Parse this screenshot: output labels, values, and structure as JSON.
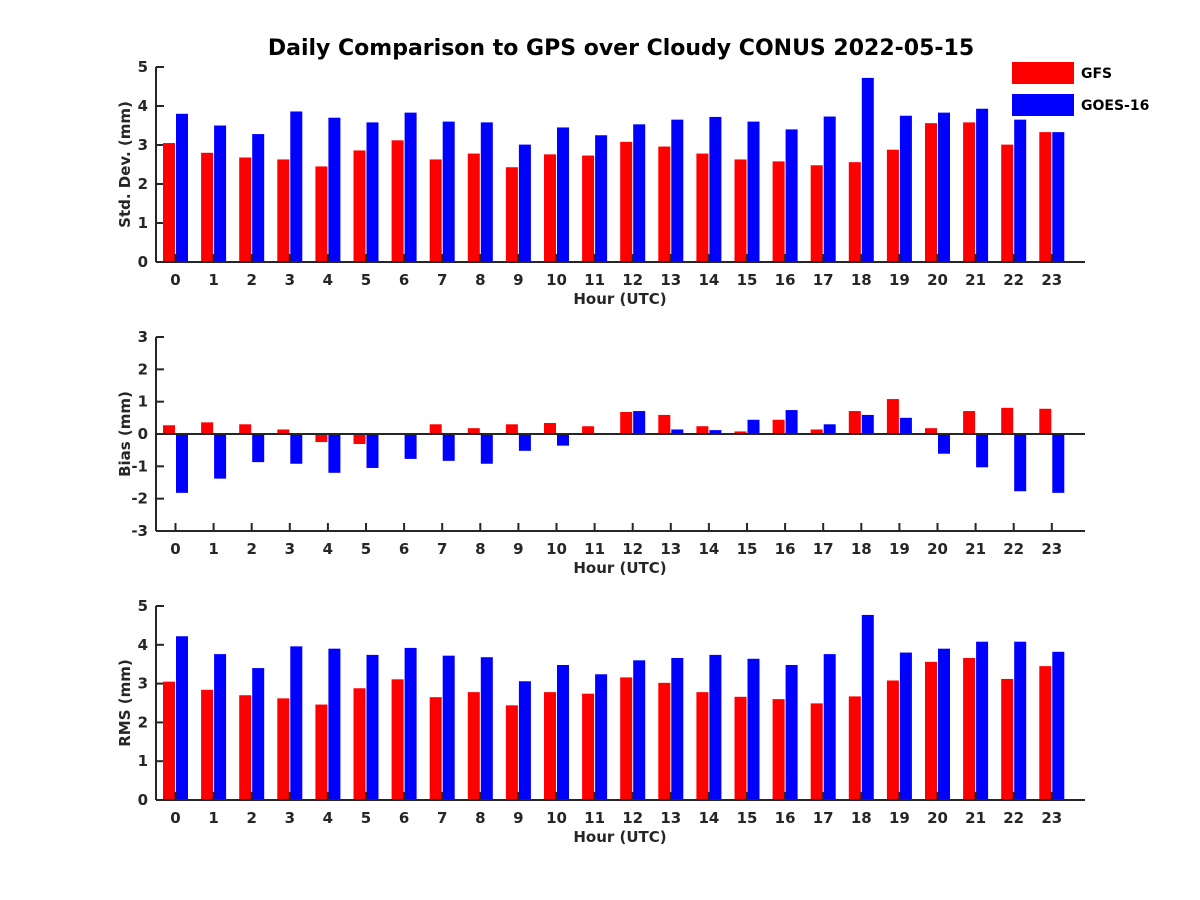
{
  "title": "Daily Comparison to GPS over Cloudy CONUS 2022-05-15",
  "colors": {
    "GFS": "#ff0000",
    "GOES-16": "#0000ff",
    "axis": "#262626"
  },
  "legend": {
    "placement": "top-right",
    "entries": [
      "GFS",
      "GOES-16"
    ]
  },
  "chart_data": [
    {
      "type": "bar",
      "ylabel": "Std. Dev. (mm)",
      "xlabel": "Hour (UTC)",
      "ylim": [
        0,
        5
      ],
      "yticks": [
        0,
        1,
        2,
        3,
        4,
        5
      ],
      "categories": [
        "0",
        "1",
        "2",
        "3",
        "4",
        "5",
        "6",
        "7",
        "8",
        "9",
        "10",
        "11",
        "12",
        "13",
        "14",
        "15",
        "16",
        "17",
        "18",
        "19",
        "20",
        "21",
        "22",
        "23"
      ],
      "series": [
        {
          "name": "GFS",
          "values": [
            3.05,
            2.8,
            2.68,
            2.63,
            2.45,
            2.86,
            3.12,
            2.63,
            2.78,
            2.43,
            2.76,
            2.73,
            3.08,
            2.96,
            2.78,
            2.63,
            2.58,
            2.48,
            2.56,
            2.88,
            3.56,
            3.58,
            3.01,
            3.33
          ]
        },
        {
          "name": "GOES-16",
          "values": [
            3.8,
            3.5,
            3.28,
            3.86,
            3.7,
            3.58,
            3.83,
            3.6,
            3.58,
            3.01,
            3.45,
            3.25,
            3.53,
            3.65,
            3.72,
            3.6,
            3.4,
            3.73,
            4.72,
            3.75,
            3.83,
            3.93,
            3.65,
            3.33
          ]
        }
      ]
    },
    {
      "type": "bar",
      "ylabel": "Bias (mm)",
      "xlabel": "Hour (UTC)",
      "ylim": [
        -3,
        3
      ],
      "yticks": [
        -3,
        -2,
        -1,
        0,
        1,
        2,
        3
      ],
      "categories": [
        "0",
        "1",
        "2",
        "3",
        "4",
        "5",
        "6",
        "7",
        "8",
        "9",
        "10",
        "11",
        "12",
        "13",
        "14",
        "15",
        "16",
        "17",
        "18",
        "19",
        "20",
        "21",
        "22",
        "23"
      ],
      "series": [
        {
          "name": "GFS",
          "values": [
            0.27,
            0.36,
            0.3,
            0.14,
            -0.25,
            -0.31,
            0.02,
            0.3,
            0.18,
            0.3,
            0.34,
            0.24,
            0.68,
            0.59,
            0.24,
            0.08,
            0.44,
            0.14,
            0.71,
            1.08,
            0.18,
            0.71,
            0.81,
            0.78
          ]
        },
        {
          "name": "GOES-16",
          "values": [
            -1.82,
            -1.38,
            -0.87,
            -0.92,
            -1.2,
            -1.05,
            -0.77,
            -0.83,
            -0.92,
            -0.52,
            -0.36,
            0.0,
            0.71,
            0.14,
            0.12,
            0.44,
            0.74,
            0.3,
            0.59,
            0.5,
            -0.61,
            -1.03,
            -1.77,
            -1.82
          ]
        }
      ]
    },
    {
      "type": "bar",
      "ylabel": "RMS (mm)",
      "xlabel": "Hour (UTC)",
      "ylim": [
        0,
        5
      ],
      "yticks": [
        0,
        1,
        2,
        3,
        4,
        5
      ],
      "categories": [
        "0",
        "1",
        "2",
        "3",
        "4",
        "5",
        "6",
        "7",
        "8",
        "9",
        "10",
        "11",
        "12",
        "13",
        "14",
        "15",
        "16",
        "17",
        "18",
        "19",
        "20",
        "21",
        "22",
        "23"
      ],
      "series": [
        {
          "name": "GFS",
          "values": [
            3.05,
            2.84,
            2.7,
            2.62,
            2.46,
            2.88,
            3.11,
            2.65,
            2.78,
            2.44,
            2.78,
            2.74,
            3.16,
            3.02,
            2.78,
            2.66,
            2.6,
            2.49,
            2.67,
            3.08,
            3.56,
            3.66,
            3.12,
            3.45
          ]
        },
        {
          "name": "GOES-16",
          "values": [
            4.22,
            3.76,
            3.4,
            3.96,
            3.9,
            3.74,
            3.92,
            3.72,
            3.68,
            3.06,
            3.48,
            3.24,
            3.6,
            3.66,
            3.74,
            3.64,
            3.48,
            3.76,
            4.77,
            3.8,
            3.9,
            4.08,
            4.08,
            3.82
          ]
        }
      ]
    }
  ]
}
